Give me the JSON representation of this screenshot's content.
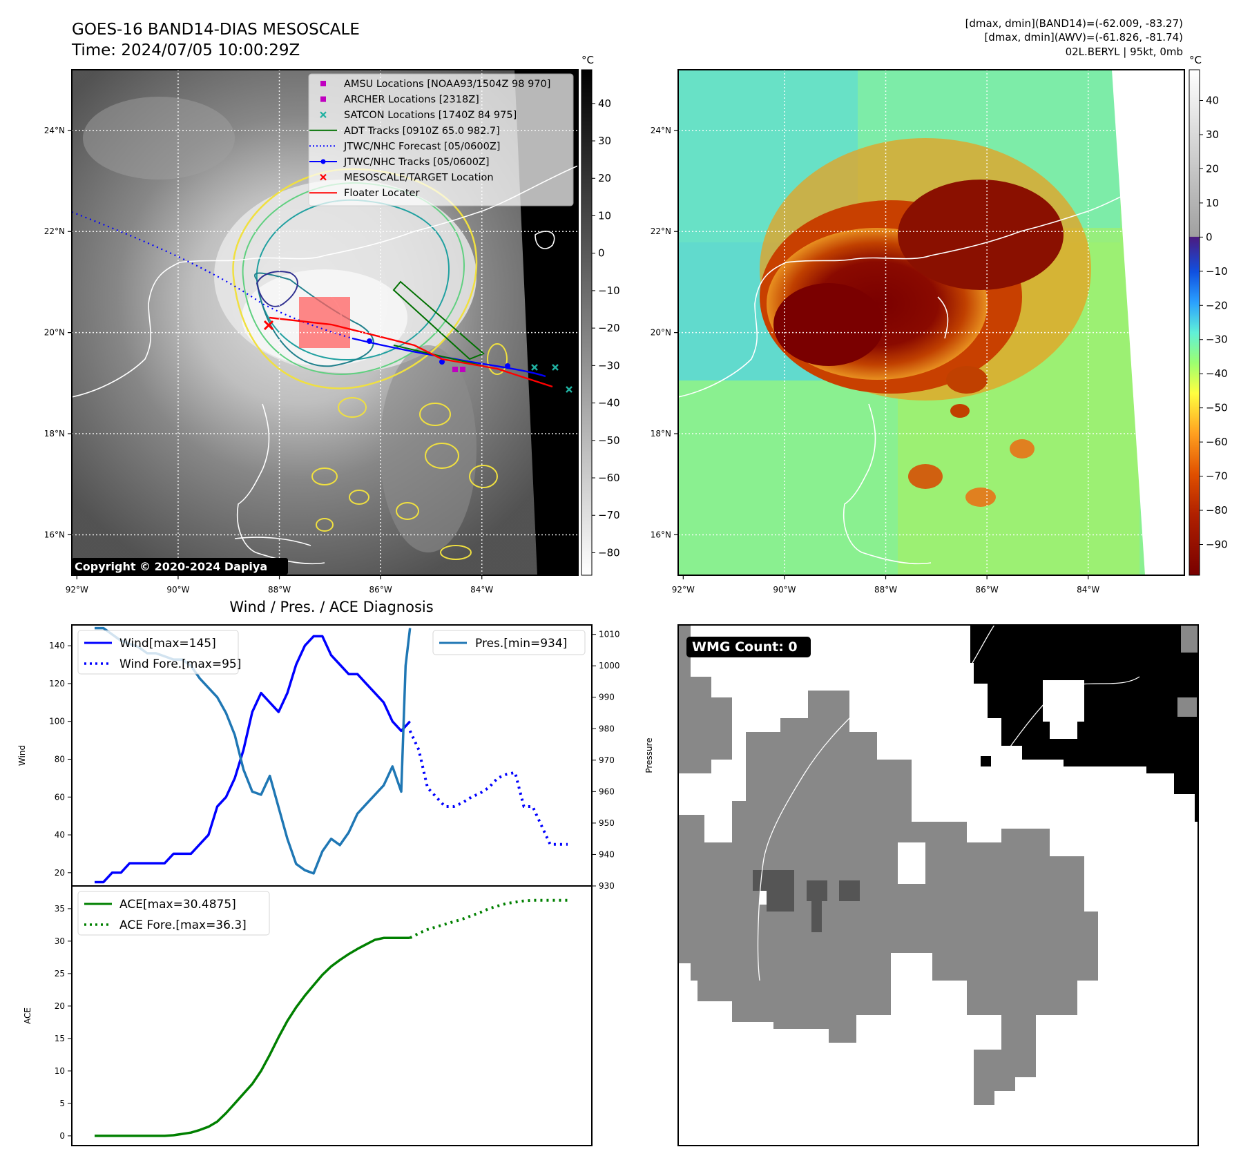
{
  "header": {
    "title_line1": "GOES-16 BAND14-DIAS MESOSCALE",
    "title_line2": "Time: 2024/07/05 10:00:29Z",
    "info_line1": "[dmax, dmin](BAND14)=(-62.009, -83.27)",
    "info_line2": "[dmax, dmin](AWV)=(-61.826, -81.74)",
    "info_line3": "02L.BERYL | 95kt, 0mb",
    "copyright": "Copyright © 2020-2024 Dapiya"
  },
  "map_axes": {
    "lon_ticks": [
      "92°W",
      "90°W",
      "88°W",
      "86°W",
      "84°W"
    ],
    "lat_ticks": [
      "24°N",
      "22°N",
      "20°N",
      "18°N",
      "16°N"
    ],
    "lon_values": [
      -92,
      -90,
      -88,
      -86,
      -84
    ],
    "lat_values": [
      24,
      22,
      20,
      18,
      16
    ],
    "lon_range": [
      -92.1,
      -82.1
    ],
    "lat_range": [
      15.2,
      25.2
    ]
  },
  "colorbars": {
    "unit": "°C",
    "gray_ticks": [
      "40",
      "30",
      "20",
      "10",
      "0",
      "−10",
      "−20",
      "−30",
      "−40",
      "−50",
      "−60",
      "−70",
      "−80"
    ],
    "gray_values": [
      40,
      30,
      20,
      10,
      0,
      -10,
      -20,
      -30,
      -40,
      -50,
      -60,
      -70,
      -80
    ],
    "gray_range": [
      49,
      -86
    ],
    "color_ticks": [
      "40",
      "30",
      "20",
      "10",
      "0",
      "−10",
      "−20",
      "−30",
      "−40",
      "−50",
      "−60",
      "−70",
      "−80",
      "−90"
    ],
    "color_values": [
      40,
      30,
      20,
      10,
      0,
      -10,
      -20,
      -30,
      -40,
      -50,
      -60,
      -70,
      -80,
      -90
    ],
    "color_range": [
      49,
      -99
    ]
  },
  "legend": {
    "entries": [
      {
        "label": "AMSU Locations [NOAA93/1504Z 98 970]",
        "color": "#c000c0",
        "marker": "square"
      },
      {
        "label": "ARCHER Locations [2318Z]",
        "color": "#c000c0",
        "marker": "square"
      },
      {
        "label": "SATCON Locations [1740Z 84 975]",
        "color": "#20b0a0",
        "marker": "x"
      },
      {
        "label": "ADT Tracks [0910Z 65.0 982.7]",
        "color": "#007000",
        "marker": "line"
      },
      {
        "label": "JTWC/NHC Forecast [05/0600Z]",
        "color": "#0000ff",
        "marker": "dotted"
      },
      {
        "label": "JTWC/NHC Tracks [05/0600Z]",
        "color": "#0000ff",
        "marker": "line-dot"
      },
      {
        "label": "MESOSCALE/TARGET Location",
        "color": "#ff0000",
        "marker": "x"
      },
      {
        "label": "Floater Locater",
        "color": "#ff0000",
        "marker": "line"
      }
    ]
  },
  "wmg": {
    "label": "WMG Count: 0"
  },
  "chart_data": [
    {
      "type": "line",
      "title": "Wind / Pres. / ACE Diagnosis",
      "ylabel": "Wind",
      "ylabel_right": "Pressure",
      "ylim": [
        13,
        151
      ],
      "ylim_right": [
        930,
        1013
      ],
      "y_ticks": [
        20,
        40,
        60,
        80,
        100,
        120,
        140
      ],
      "y_ticks_right": [
        930,
        940,
        950,
        960,
        970,
        980,
        990,
        1000,
        1010
      ],
      "series": [
        {
          "name": "Wind[max=145]",
          "color": "#0000ff",
          "style": "solid",
          "x": [
            0,
            1,
            2,
            3,
            4,
            5,
            6,
            7,
            8,
            9,
            10,
            11,
            12,
            13,
            14,
            15,
            16,
            17,
            18,
            19,
            20,
            21,
            22,
            23,
            24,
            25,
            26,
            27,
            28,
            29,
            30,
            31,
            32,
            33,
            34,
            35,
            36
          ],
          "values": [
            15,
            15,
            20,
            20,
            25,
            25,
            25,
            25,
            25,
            30,
            30,
            30,
            35,
            40,
            55,
            60,
            70,
            85,
            105,
            115,
            110,
            105,
            115,
            130,
            140,
            145,
            145,
            135,
            130,
            125,
            125,
            120,
            115,
            110,
            100,
            95,
            100
          ]
        },
        {
          "name": "Wind Fore.[max=95]",
          "color": "#0000ff",
          "style": "dotted",
          "x": [
            36,
            37,
            38,
            39,
            40,
            41,
            42,
            43,
            44,
            45,
            46,
            47,
            48,
            49,
            50,
            51,
            52,
            53,
            54
          ],
          "values": [
            95,
            85,
            65,
            60,
            55,
            55,
            57,
            60,
            62,
            65,
            70,
            72,
            73,
            55,
            55,
            45,
            35,
            35,
            35
          ]
        },
        {
          "name": "Pres.[min=934]",
          "color": "#1f77b4",
          "style": "solid",
          "axis": "right",
          "x": [
            0,
            1,
            2,
            3,
            4,
            5,
            6,
            7,
            8,
            9,
            10,
            11,
            12,
            13,
            14,
            15,
            16,
            17,
            18,
            19,
            20,
            21,
            22,
            23,
            24,
            25,
            26,
            27,
            28,
            29,
            30,
            31,
            32,
            33,
            34,
            35,
            35.5,
            36
          ],
          "values": [
            1012,
            1012,
            1010,
            1008,
            1007,
            1006,
            1004,
            1004,
            1003,
            1002,
            1002,
            1000,
            996,
            993,
            990,
            985,
            978,
            967,
            960,
            959,
            965,
            955,
            945,
            937,
            935,
            934,
            941,
            945,
            943,
            947,
            953,
            956,
            959,
            962,
            968,
            960,
            1000,
            1012
          ]
        }
      ]
    },
    {
      "type": "line",
      "ylabel": "ACE",
      "ylim": [
        -1.5,
        38.5
      ],
      "y_ticks": [
        0,
        5,
        10,
        15,
        20,
        25,
        30,
        35
      ],
      "series": [
        {
          "name": "ACE[max=30.4875]",
          "color": "#008000",
          "style": "solid",
          "x": [
            0,
            8,
            9,
            10,
            11,
            12,
            13,
            14,
            15,
            16,
            17,
            18,
            19,
            20,
            21,
            22,
            23,
            24,
            25,
            26,
            27,
            28,
            29,
            30,
            31,
            32,
            33,
            34,
            35,
            36
          ],
          "values": [
            0,
            0,
            0.1,
            0.3,
            0.5,
            0.9,
            1.4,
            2.2,
            3.5,
            5,
            6.5,
            8,
            10,
            12.5,
            15.2,
            17.7,
            19.8,
            21.6,
            23.2,
            24.8,
            26.1,
            27.1,
            28,
            28.8,
            29.5,
            30.2,
            30.4875,
            30.4875,
            30.4875,
            30.4875
          ]
        },
        {
          "name": "ACE Fore.[max=36.3]",
          "color": "#008000",
          "style": "dotted",
          "x": [
            36,
            37,
            38,
            39,
            40,
            41,
            42,
            43,
            44,
            45,
            46,
            47,
            48,
            49,
            50,
            51,
            52,
            53,
            54
          ],
          "values": [
            30.5,
            31.2,
            31.8,
            32.2,
            32.6,
            33,
            33.4,
            33.9,
            34.4,
            35,
            35.4,
            35.8,
            36,
            36.2,
            36.3,
            36.3,
            36.3,
            36.3,
            36.3
          ]
        }
      ]
    }
  ]
}
